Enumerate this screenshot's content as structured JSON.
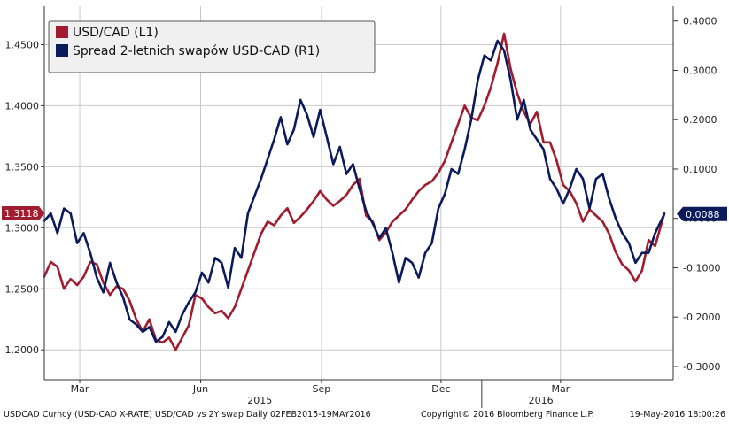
{
  "chart_data": {
    "type": "line",
    "legend": {
      "placement": "top-left"
    },
    "grid": true,
    "x_range": [
      "2015-02-02",
      "2016-05-19"
    ],
    "x_ticks": [
      {
        "date": "2015-03-01",
        "label": "Mar"
      },
      {
        "date": "2015-06-01",
        "label": "Jun"
      },
      {
        "date": "2015-09-01",
        "label": "Sep"
      },
      {
        "date": "2015-12-01",
        "label": "Dec"
      },
      {
        "date": "2016-03-01",
        "label": "Mar"
      }
    ],
    "year_labels": [
      {
        "date": "2015-07-16",
        "label": "2015"
      },
      {
        "date": "2016-02-15",
        "label": "2016"
      }
    ],
    "year_separators": [
      "2016-01-01"
    ],
    "y_left": {
      "range": [
        1.1755,
        1.4815
      ],
      "ticks": [
        "1.2000",
        "1.2500",
        "1.3000",
        "1.3500",
        "1.4000",
        "1.4500"
      ]
    },
    "y_right": {
      "range": [
        -0.327,
        0.43
      ],
      "ticks": [
        "-0.3000",
        "-0.2000",
        "-0.1000",
        "0.0000",
        "0.1000",
        "0.2000",
        "0.3000",
        "0.4000"
      ]
    },
    "series": [
      {
        "name": "USD/CAD (L1)",
        "axis": "left",
        "color": "#a01c2e",
        "last_value_label": "1.3118",
        "points": [
          [
            "2015-02-02",
            1.26
          ],
          [
            "2015-02-07",
            1.272
          ],
          [
            "2015-02-12",
            1.268
          ],
          [
            "2015-02-17",
            1.25
          ],
          [
            "2015-02-22",
            1.258
          ],
          [
            "2015-02-27",
            1.253
          ],
          [
            "2015-03-04",
            1.26
          ],
          [
            "2015-03-09",
            1.272
          ],
          [
            "2015-03-14",
            1.27
          ],
          [
            "2015-03-19",
            1.255
          ],
          [
            "2015-03-24",
            1.245
          ],
          [
            "2015-03-29",
            1.252
          ],
          [
            "2015-04-03",
            1.25
          ],
          [
            "2015-04-08",
            1.24
          ],
          [
            "2015-04-13",
            1.225
          ],
          [
            "2015-04-18",
            1.215
          ],
          [
            "2015-04-23",
            1.225
          ],
          [
            "2015-04-28",
            1.208
          ],
          [
            "2015-05-03",
            1.206
          ],
          [
            "2015-05-08",
            1.21
          ],
          [
            "2015-05-13",
            1.2
          ],
          [
            "2015-05-18",
            1.21
          ],
          [
            "2015-05-23",
            1.22
          ],
          [
            "2015-05-28",
            1.245
          ],
          [
            "2015-06-02",
            1.242
          ],
          [
            "2015-06-07",
            1.235
          ],
          [
            "2015-06-12",
            1.23
          ],
          [
            "2015-06-17",
            1.232
          ],
          [
            "2015-06-22",
            1.226
          ],
          [
            "2015-06-27",
            1.235
          ],
          [
            "2015-07-02",
            1.25
          ],
          [
            "2015-07-07",
            1.265
          ],
          [
            "2015-07-12",
            1.28
          ],
          [
            "2015-07-17",
            1.295
          ],
          [
            "2015-07-22",
            1.305
          ],
          [
            "2015-07-27",
            1.302
          ],
          [
            "2015-08-01",
            1.31
          ],
          [
            "2015-08-06",
            1.316
          ],
          [
            "2015-08-11",
            1.304
          ],
          [
            "2015-08-16",
            1.309
          ],
          [
            "2015-08-21",
            1.315
          ],
          [
            "2015-08-26",
            1.322
          ],
          [
            "2015-08-31",
            1.33
          ],
          [
            "2015-09-05",
            1.323
          ],
          [
            "2015-09-10",
            1.318
          ],
          [
            "2015-09-15",
            1.322
          ],
          [
            "2015-09-20",
            1.327
          ],
          [
            "2015-09-25",
            1.335
          ],
          [
            "2015-09-30",
            1.34
          ],
          [
            "2015-10-05",
            1.31
          ],
          [
            "2015-10-10",
            1.305
          ],
          [
            "2015-10-15",
            1.29
          ],
          [
            "2015-10-20",
            1.296
          ],
          [
            "2015-10-25",
            1.305
          ],
          [
            "2015-10-30",
            1.31
          ],
          [
            "2015-11-04",
            1.315
          ],
          [
            "2015-11-09",
            1.323
          ],
          [
            "2015-11-14",
            1.33
          ],
          [
            "2015-11-19",
            1.335
          ],
          [
            "2015-11-24",
            1.338
          ],
          [
            "2015-11-29",
            1.345
          ],
          [
            "2015-12-04",
            1.355
          ],
          [
            "2015-12-09",
            1.37
          ],
          [
            "2015-12-14",
            1.385
          ],
          [
            "2015-12-19",
            1.4
          ],
          [
            "2015-12-24",
            1.39
          ],
          [
            "2015-12-29",
            1.388
          ],
          [
            "2016-01-03",
            1.4
          ],
          [
            "2016-01-08",
            1.415
          ],
          [
            "2016-01-13",
            1.435
          ],
          [
            "2016-01-18",
            1.459
          ],
          [
            "2016-01-23",
            1.43
          ],
          [
            "2016-01-28",
            1.41
          ],
          [
            "2016-02-02",
            1.395
          ],
          [
            "2016-02-07",
            1.385
          ],
          [
            "2016-02-12",
            1.395
          ],
          [
            "2016-02-17",
            1.37
          ],
          [
            "2016-02-22",
            1.37
          ],
          [
            "2016-02-27",
            1.355
          ],
          [
            "2016-03-03",
            1.335
          ],
          [
            "2016-03-08",
            1.33
          ],
          [
            "2016-03-13",
            1.32
          ],
          [
            "2016-03-18",
            1.305
          ],
          [
            "2016-03-23",
            1.315
          ],
          [
            "2016-03-28",
            1.31
          ],
          [
            "2016-04-02",
            1.305
          ],
          [
            "2016-04-07",
            1.295
          ],
          [
            "2016-04-12",
            1.28
          ],
          [
            "2016-04-17",
            1.27
          ],
          [
            "2016-04-22",
            1.265
          ],
          [
            "2016-04-27",
            1.256
          ],
          [
            "2016-05-02",
            1.265
          ],
          [
            "2016-05-07",
            1.29
          ],
          [
            "2016-05-12",
            1.285
          ],
          [
            "2016-05-19",
            1.3118
          ]
        ]
      },
      {
        "name": "Spread 2-letnich swapów USD-CAD (R1)",
        "axis": "right",
        "color": "#0b1a5c",
        "last_value_label": "0.0088",
        "points": [
          [
            "2015-02-02",
            -0.005
          ],
          [
            "2015-02-07",
            0.01
          ],
          [
            "2015-02-12",
            -0.03
          ],
          [
            "2015-02-17",
            0.02
          ],
          [
            "2015-02-22",
            0.01
          ],
          [
            "2015-02-27",
            -0.05
          ],
          [
            "2015-03-04",
            -0.03
          ],
          [
            "2015-03-09",
            -0.07
          ],
          [
            "2015-03-14",
            -0.12
          ],
          [
            "2015-03-19",
            -0.15
          ],
          [
            "2015-03-24",
            -0.09
          ],
          [
            "2015-03-29",
            -0.13
          ],
          [
            "2015-04-03",
            -0.16
          ],
          [
            "2015-04-08",
            -0.205
          ],
          [
            "2015-04-13",
            -0.215
          ],
          [
            "2015-04-18",
            -0.23
          ],
          [
            "2015-04-23",
            -0.22
          ],
          [
            "2015-04-28",
            -0.25
          ],
          [
            "2015-05-03",
            -0.24
          ],
          [
            "2015-05-08",
            -0.21
          ],
          [
            "2015-05-13",
            -0.23
          ],
          [
            "2015-05-18",
            -0.195
          ],
          [
            "2015-05-23",
            -0.17
          ],
          [
            "2015-05-28",
            -0.15
          ],
          [
            "2015-06-02",
            -0.11
          ],
          [
            "2015-06-07",
            -0.13
          ],
          [
            "2015-06-12",
            -0.08
          ],
          [
            "2015-06-17",
            -0.09
          ],
          [
            "2015-06-22",
            -0.14
          ],
          [
            "2015-06-27",
            -0.06
          ],
          [
            "2015-07-02",
            -0.08
          ],
          [
            "2015-07-07",
            0.01
          ],
          [
            "2015-07-12",
            0.045
          ],
          [
            "2015-07-17",
            0.08
          ],
          [
            "2015-07-22",
            0.12
          ],
          [
            "2015-07-27",
            0.16
          ],
          [
            "2015-08-01",
            0.205
          ],
          [
            "2015-08-06",
            0.15
          ],
          [
            "2015-08-11",
            0.18
          ],
          [
            "2015-08-16",
            0.24
          ],
          [
            "2015-08-21",
            0.21
          ],
          [
            "2015-08-26",
            0.165
          ],
          [
            "2015-08-31",
            0.22
          ],
          [
            "2015-09-05",
            0.165
          ],
          [
            "2015-09-10",
            0.11
          ],
          [
            "2015-09-15",
            0.145
          ],
          [
            "2015-09-20",
            0.09
          ],
          [
            "2015-09-25",
            0.11
          ],
          [
            "2015-09-30",
            0.06
          ],
          [
            "2015-10-05",
            0.015
          ],
          [
            "2015-10-10",
            -0.01
          ],
          [
            "2015-10-15",
            -0.04
          ],
          [
            "2015-10-20",
            -0.02
          ],
          [
            "2015-10-25",
            -0.07
          ],
          [
            "2015-10-30",
            -0.13
          ],
          [
            "2015-11-04",
            -0.08
          ],
          [
            "2015-11-09",
            -0.09
          ],
          [
            "2015-11-14",
            -0.12
          ],
          [
            "2015-11-19",
            -0.07
          ],
          [
            "2015-11-24",
            -0.05
          ],
          [
            "2015-11-29",
            0.02
          ],
          [
            "2015-12-04",
            0.05
          ],
          [
            "2015-12-09",
            0.1
          ],
          [
            "2015-12-14",
            0.09
          ],
          [
            "2015-12-19",
            0.14
          ],
          [
            "2015-12-24",
            0.2
          ],
          [
            "2015-12-29",
            0.28
          ],
          [
            "2016-01-03",
            0.33
          ],
          [
            "2016-01-08",
            0.32
          ],
          [
            "2016-01-13",
            0.36
          ],
          [
            "2016-01-18",
            0.34
          ],
          [
            "2016-01-23",
            0.28
          ],
          [
            "2016-01-28",
            0.2
          ],
          [
            "2016-02-02",
            0.24
          ],
          [
            "2016-02-07",
            0.18
          ],
          [
            "2016-02-12",
            0.16
          ],
          [
            "2016-02-17",
            0.14
          ],
          [
            "2016-02-22",
            0.08
          ],
          [
            "2016-02-27",
            0.06
          ],
          [
            "2016-03-03",
            0.03
          ],
          [
            "2016-03-08",
            0.06
          ],
          [
            "2016-03-13",
            0.1
          ],
          [
            "2016-03-18",
            0.08
          ],
          [
            "2016-03-23",
            0.02
          ],
          [
            "2016-03-28",
            0.08
          ],
          [
            "2016-04-02",
            0.09
          ],
          [
            "2016-04-07",
            0.04
          ],
          [
            "2016-04-12",
            0.0
          ],
          [
            "2016-04-17",
            -0.03
          ],
          [
            "2016-04-22",
            -0.05
          ],
          [
            "2016-04-27",
            -0.09
          ],
          [
            "2016-05-02",
            -0.07
          ],
          [
            "2016-05-07",
            -0.07
          ],
          [
            "2016-05-12",
            -0.03
          ],
          [
            "2016-05-19",
            0.0088
          ]
        ]
      }
    ]
  },
  "footer": {
    "left": "USDCAD Curncy (USD-CAD X-RATE) USD/CAD vs 2Y swap  Daily 02FEB2015-19MAY2016",
    "middle": "Copyright© 2016 Bloomberg Finance L.P.",
    "right": "19-May-2016 18:00:26"
  }
}
